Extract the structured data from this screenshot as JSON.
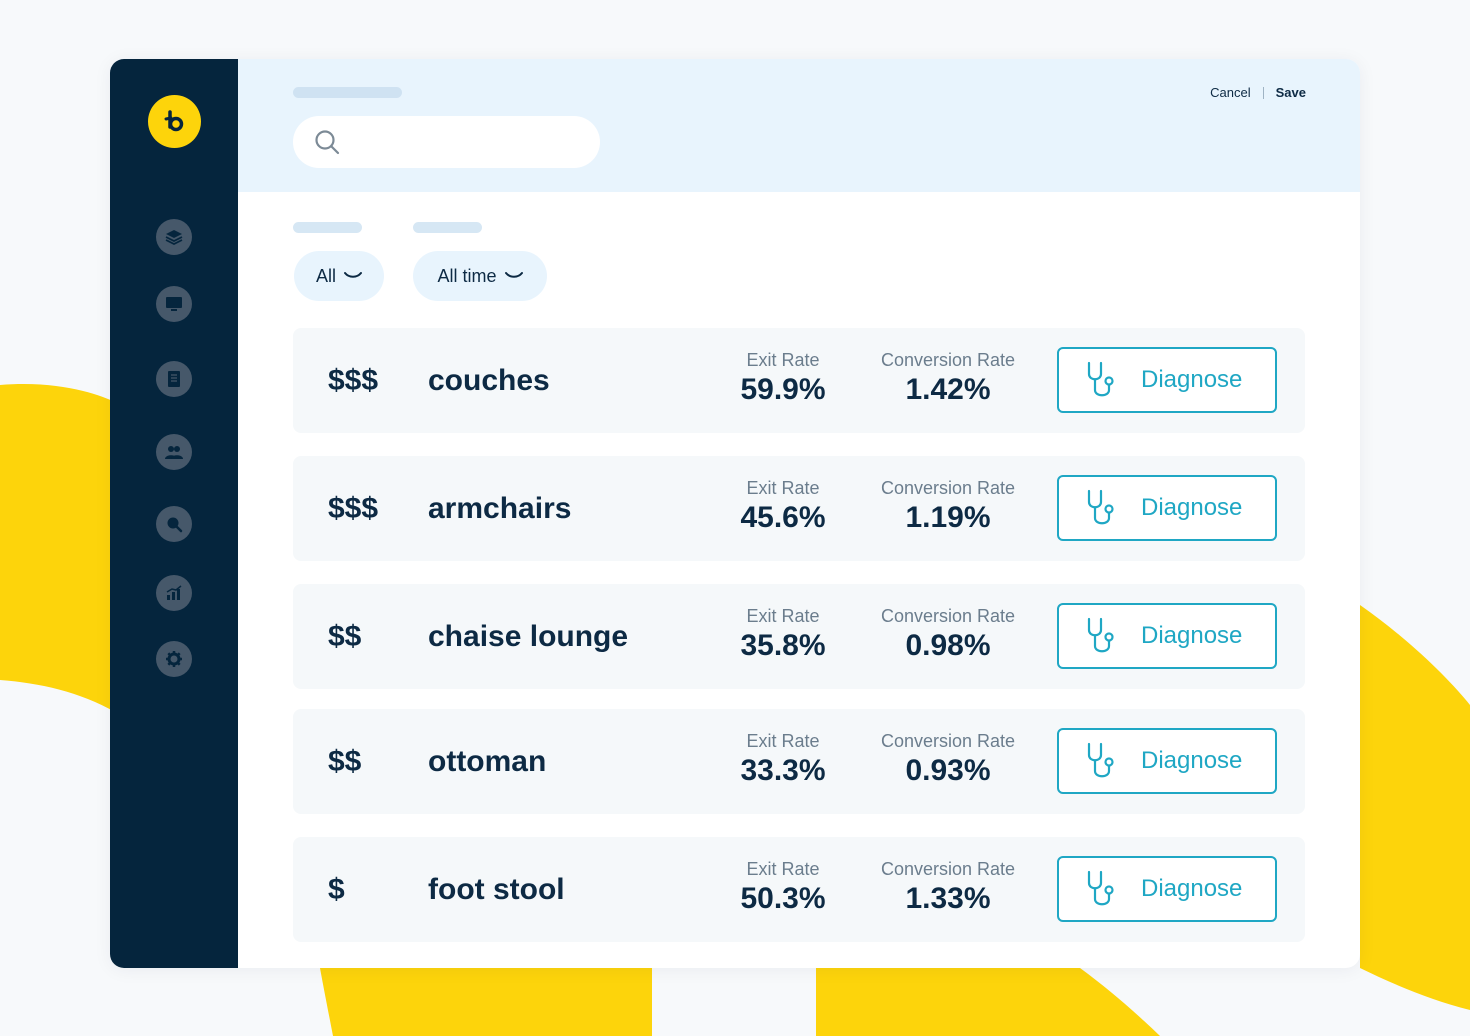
{
  "header": {
    "search": {
      "placeholder": ""
    },
    "cancel_label": "Cancel",
    "save_label": "Save"
  },
  "filters": [
    {
      "label": "All"
    },
    {
      "label": "All time"
    }
  ],
  "sidebar": {
    "logo_icon": "brand-logo-icon",
    "items": [
      {
        "icon": "layers-icon"
      },
      {
        "icon": "monitor-icon"
      },
      {
        "icon": "document-icon"
      },
      {
        "icon": "users-icon"
      },
      {
        "icon": "search-icon"
      },
      {
        "icon": "analytics-icon"
      },
      {
        "icon": "gear-icon"
      }
    ]
  },
  "table": {
    "exit_label": "Exit Rate",
    "conversion_label": "Conversion Rate",
    "button_label": "Diagnose",
    "rows": [
      {
        "price": "$$$",
        "name": "couches",
        "exit_rate": "59.9%",
        "conversion_rate": "1.42%"
      },
      {
        "price": "$$$",
        "name": "armchairs",
        "exit_rate": "45.6%",
        "conversion_rate": "1.19%"
      },
      {
        "price": "$$",
        "name": "chaise lounge",
        "exit_rate": "35.8%",
        "conversion_rate": "0.98%"
      },
      {
        "price": "$$",
        "name": "ottoman",
        "exit_rate": "33.3%",
        "conversion_rate": "0.93%"
      },
      {
        "price": "$",
        "name": "foot stool",
        "exit_rate": "50.3%",
        "conversion_rate": "1.33%"
      }
    ]
  },
  "colors": {
    "accent_yellow": "#fdd40b",
    "sidebar_navy": "#05253d",
    "teal": "#1fa7c4",
    "topbar_blue": "#e8f4fd"
  }
}
